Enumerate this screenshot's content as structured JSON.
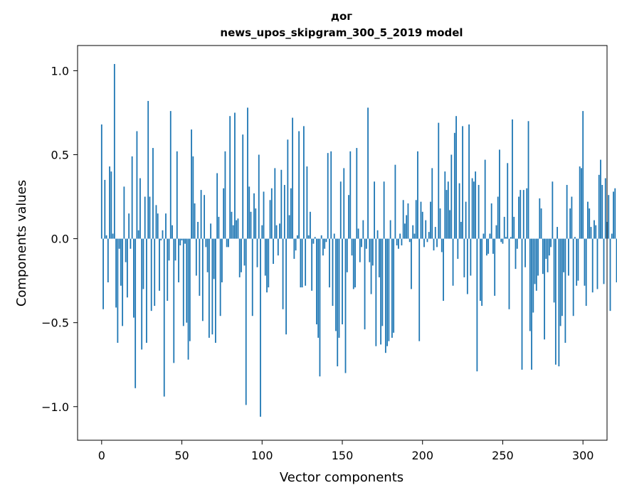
{
  "chart_data": {
    "type": "bar",
    "title": "дог",
    "subtitle": "news_upos_skipgram_300_5_2019 model",
    "xlabel": "Vector components",
    "ylabel": "Components values",
    "xlim": [
      -15,
      315
    ],
    "ylim": [
      -1.2,
      1.15
    ],
    "xticks": [
      0,
      50,
      100,
      150,
      200,
      250,
      300
    ],
    "xtick_labels": [
      "0",
      "50",
      "100",
      "150",
      "200",
      "250",
      "300"
    ],
    "yticks": [
      1.0,
      0.5,
      0.0,
      -0.5,
      -1.0
    ],
    "ytick_labels": [
      "1.0",
      "0.5",
      "0.0",
      "−0.5",
      "−1.0"
    ],
    "bar_color": "#1f77b4",
    "grid": false,
    "values": [
      0.68,
      -0.42,
      0.35,
      0.02,
      -0.26,
      0.43,
      0.4,
      0.03,
      1.04,
      -0.41,
      -0.62,
      -0.06,
      -0.28,
      -0.52,
      0.31,
      -0.14,
      -0.35,
      0.15,
      -0.06,
      0.49,
      -0.47,
      -0.89,
      0.64,
      0.05,
      0.36,
      -0.66,
      -0.3,
      0.25,
      -0.62,
      0.82,
      0.25,
      -0.43,
      0.54,
      -0.4,
      0.2,
      0.15,
      -0.31,
      -0.01,
      0.05,
      -0.94,
      0.15,
      -0.37,
      -0.13,
      0.76,
      0.08,
      -0.74,
      -0.13,
      0.52,
      -0.26,
      -0.04,
      -0.01,
      -0.52,
      -0.03,
      -0.5,
      -0.72,
      -0.61,
      0.65,
      0.49,
      0.21,
      -0.22,
      0.1,
      -0.34,
      0.29,
      -0.49,
      0.26,
      -0.05,
      -0.2,
      -0.59,
      0.09,
      -0.57,
      -0.24,
      -0.62,
      0.39,
      0.13,
      -0.46,
      -0.26,
      0.3,
      0.52,
      -0.05,
      -0.05,
      0.73,
      0.16,
      0.08,
      0.75,
      0.11,
      0.12,
      -0.23,
      -0.2,
      0.62,
      -0.16,
      -0.99,
      0.78,
      0.31,
      0.16,
      -0.46,
      0.27,
      0.18,
      -0.17,
      0.5,
      -1.06,
      0.08,
      0.28,
      -0.22,
      -0.32,
      -0.29,
      0.23,
      0.3,
      -0.15,
      0.42,
      0.08,
      -0.1,
      0.09,
      0.41,
      -0.42,
      0.32,
      -0.57,
      0.59,
      0.14,
      0.3,
      0.72,
      -0.12,
      -0.07,
      0.02,
      0.64,
      -0.29,
      -0.29,
      0.67,
      -0.28,
      0.43,
      0.02,
      0.16,
      -0.31,
      -0.03,
      0.01,
      -0.51,
      -0.59,
      -0.82,
      0.02,
      -0.1,
      -0.06,
      -0.02,
      0.51,
      -0.29,
      0.52,
      -0.4,
      0.03,
      -0.55,
      -0.76,
      -0.59,
      0.34,
      -0.51,
      0.42,
      -0.8,
      -0.2,
      0.26,
      0.52,
      -0.1,
      -0.3,
      -0.29,
      0.54,
      0.06,
      -0.14,
      -0.05,
      0.11,
      -0.54,
      -0.06,
      0.78,
      -0.14,
      -0.33,
      -0.16,
      0.34,
      -0.64,
      0.05,
      -0.23,
      -0.63,
      -0.52,
      0.34,
      -0.68,
      -0.64,
      -0.61,
      0.11,
      -0.59,
      -0.56,
      0.44,
      -0.04,
      -0.06,
      0.03,
      -0.04,
      0.23,
      0.09,
      0.14,
      0.21,
      -0.02,
      -0.3,
      0.08,
      0.03,
      0.23,
      0.52,
      -0.61,
      0.22,
      0.16,
      -0.05,
      0.11,
      -0.02,
      0.04,
      0.22,
      0.42,
      -0.07,
      0.07,
      -0.05,
      0.69,
      0.18,
      -0.08,
      -0.37,
      0.4,
      0.29,
      0.34,
      0.17,
      0.5,
      -0.28,
      0.63,
      0.73,
      -0.12,
      0.33,
      0.1,
      0.67,
      -0.23,
      0.22,
      -0.33,
      0.68,
      -0.22,
      0.36,
      0.34,
      0.4,
      -0.79,
      0.32,
      -0.37,
      -0.4,
      0.03,
      0.47,
      -0.1,
      -0.09,
      0.03,
      0.21,
      -0.09,
      -0.34,
      0.08,
      0.25,
      0.53,
      -0.02,
      -0.03,
      0.13,
      0.01,
      0.45,
      -0.42,
      0.01,
      0.71,
      0.13,
      -0.18,
      -0.06,
      0.25,
      0.29,
      -0.78,
      0.29,
      -0.17,
      0.3,
      0.7,
      -0.55,
      -0.78,
      -0.44,
      -0.27,
      -0.31,
      -0.22,
      0.24,
      0.18,
      -0.21,
      -0.6,
      -0.12,
      -0.2,
      -0.1,
      -0.05,
      0.34,
      -0.38,
      -0.75,
      0.07,
      -0.76,
      -0.52,
      -0.46,
      -0.2,
      -0.62,
      0.32,
      -0.22,
      0.18,
      0.25,
      -0.46,
      0.01,
      -0.28,
      -0.25,
      0.43,
      0.42,
      0.76,
      -0.28,
      -0.4,
      0.22,
      0.18,
      0.07,
      -0.32,
      0.11,
      0.08,
      -0.3,
      0.38,
      0.47,
      0.32,
      -0.27,
      0.36,
      0.1,
      0.26,
      -0.43,
      0.03,
      0.28,
      0.3,
      -0.26
    ]
  }
}
